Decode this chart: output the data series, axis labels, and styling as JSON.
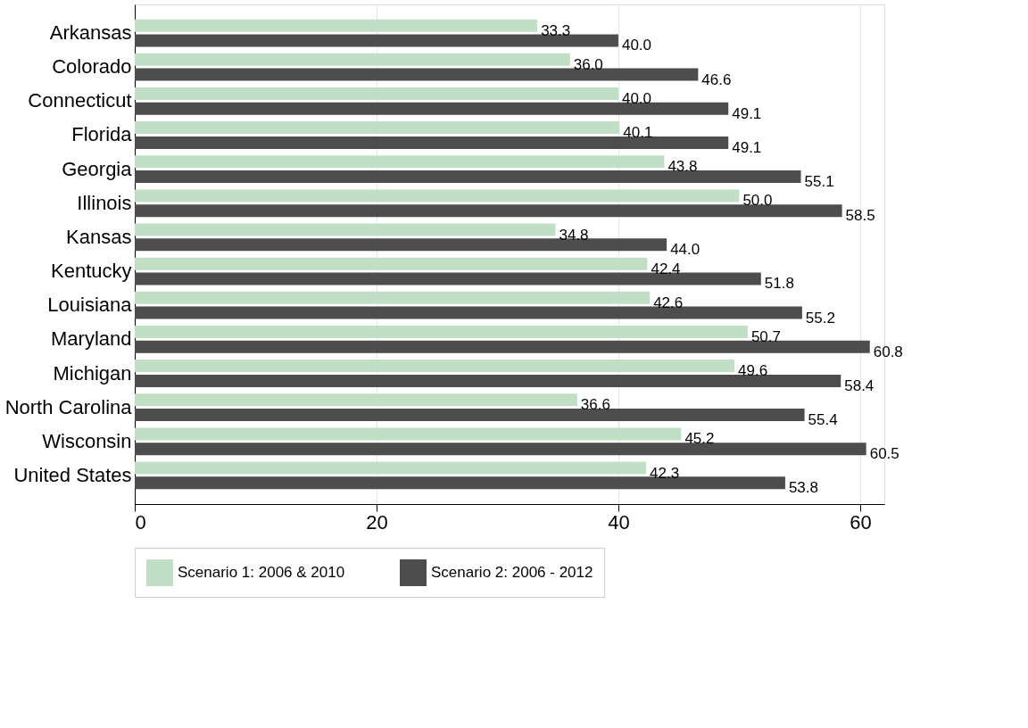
{
  "chart_data": {
    "type": "bar",
    "orientation": "horizontal",
    "categories": [
      "Arkansas",
      "Colorado",
      "Connecticut",
      "Florida",
      "Georgia",
      "Illinois",
      "Kansas",
      "Kentucky",
      "Louisiana",
      "Maryland",
      "Michigan",
      "North Carolina",
      "Wisconsin",
      "United States"
    ],
    "series": [
      {
        "name": "Scenario 1: 2006 & 2010",
        "color": "#c0dfc4",
        "values": [
          33.3,
          36.0,
          40.0,
          40.1,
          43.8,
          50.0,
          34.8,
          42.4,
          42.6,
          50.7,
          49.6,
          36.6,
          45.2,
          42.3
        ],
        "value_labels": [
          "33.3",
          "36.0",
          "40.0",
          "40.1",
          "43.8",
          "50.0",
          "34.8",
          "42.4",
          "42.6",
          "50.7",
          "49.6",
          "36.6",
          "45.2",
          "42.3"
        ]
      },
      {
        "name": "Scenario 2: 2006 - 2012",
        "color": "#4d4d4d",
        "values": [
          40.0,
          46.6,
          49.1,
          49.1,
          55.1,
          58.5,
          44.0,
          51.8,
          55.2,
          60.8,
          58.4,
          55.4,
          60.5,
          53.8
        ],
        "value_labels": [
          "40.0",
          "46.6",
          "49.1",
          "49.1",
          "55.1",
          "58.5",
          "44.0",
          "51.8",
          "55.2",
          "60.8",
          "58.4",
          "55.4",
          "60.5",
          "53.8"
        ]
      }
    ],
    "xlim": [
      0,
      62
    ],
    "xticks": [
      0,
      20,
      40,
      60
    ],
    "grid": "x",
    "legend": "bottom"
  }
}
